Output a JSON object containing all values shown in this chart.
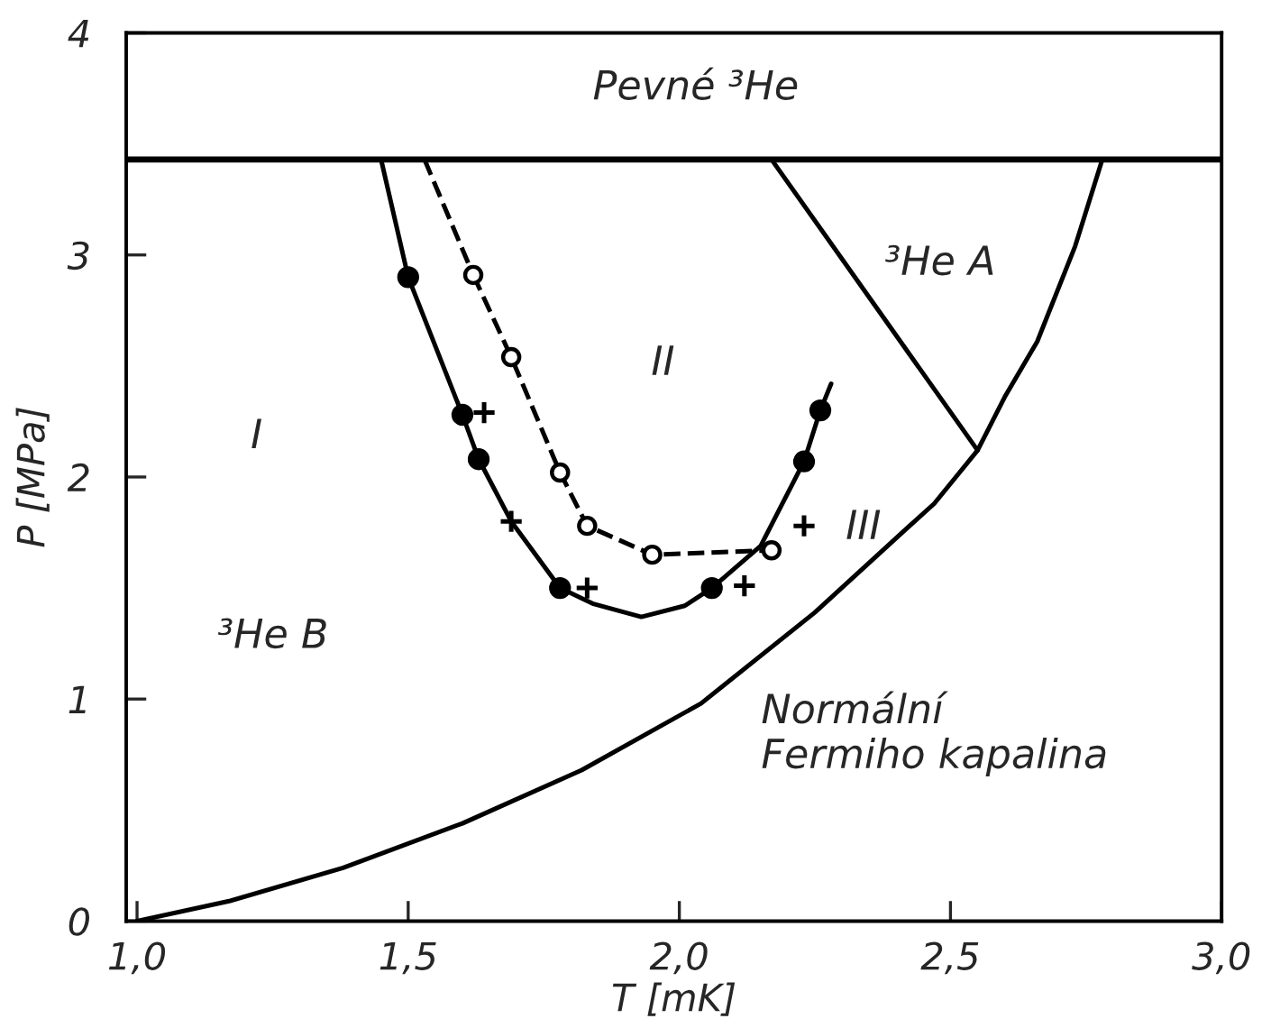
{
  "chart_data": {
    "type": "line",
    "xlabel": "T [mK]",
    "ylabel": "P [MPa]",
    "xlim": [
      0.98,
      3.0
    ],
    "ylim": [
      0,
      4
    ],
    "xticks": [
      {
        "value": 1.0,
        "label": "1,0"
      },
      {
        "value": 1.5,
        "label": "1,5"
      },
      {
        "value": 2.0,
        "label": "2,0"
      },
      {
        "value": 2.5,
        "label": "2,5"
      },
      {
        "value": 3.0,
        "label": "3,0"
      }
    ],
    "yticks": [
      0,
      1,
      2,
      3,
      4
    ],
    "grid": false,
    "ref_lines": [
      {
        "axis": "y",
        "value": 3.43,
        "color": "#000000"
      }
    ],
    "series": [
      {
        "color": "#000000",
        "line_style": "solid",
        "x": [
          1.0,
          1.17,
          1.38,
          1.6,
          1.82,
          2.04,
          2.25,
          2.42,
          2.47,
          2.55,
          2.6,
          2.66,
          2.73,
          2.78
        ],
        "values": [
          0,
          0.09,
          0.24,
          0.44,
          0.68,
          0.98,
          1.39,
          1.77,
          1.88,
          2.12,
          2.36,
          2.61,
          3.04,
          3.43
        ]
      },
      {
        "color": "#000000",
        "line_style": "solid",
        "x": [
          2.17,
          2.55
        ],
        "values": [
          3.43,
          2.12
        ]
      },
      {
        "color": "#000000",
        "line_style": "solid",
        "x": [
          1.45,
          1.5,
          1.6,
          1.63,
          1.69,
          1.78,
          1.84,
          1.93,
          2.01,
          2.06,
          2.15,
          2.23,
          2.26,
          2.28
        ],
        "values": [
          3.43,
          2.9,
          2.28,
          2.08,
          1.8,
          1.5,
          1.43,
          1.37,
          1.42,
          1.5,
          1.69,
          2.07,
          2.3,
          2.42
        ]
      },
      {
        "color": "#000000",
        "line_style": "dashed",
        "x": [
          1.53,
          1.62
        ],
        "values": [
          3.43,
          2.91
        ]
      },
      {
        "color": "#000000",
        "line_style": "dashed",
        "marker": "circle",
        "x": [
          1.62,
          1.69,
          1.78,
          1.83,
          1.95,
          2.17
        ],
        "values": [
          2.91,
          2.54,
          2.02,
          1.78,
          1.65,
          1.67
        ]
      },
      {
        "type": "scatter",
        "color": "#000000",
        "marker": "circle",
        "x": [
          1.5,
          1.6,
          1.63,
          1.78,
          2.06,
          2.23,
          2.26
        ],
        "values": [
          2.9,
          2.28,
          2.08,
          1.5,
          1.5,
          2.07,
          2.3
        ]
      },
      {
        "type": "scatter",
        "color": "#000000",
        "marker": "cross",
        "x": [
          1.64,
          1.69,
          1.83,
          2.12,
          2.23
        ],
        "values": [
          2.29,
          1.8,
          1.5,
          1.51,
          1.78
        ]
      }
    ],
    "annotations": [
      "Pevné ³He",
      "I",
      "II",
      "III",
      "³He A",
      "³He B",
      "Normální\nFermiho kapalina"
    ]
  }
}
